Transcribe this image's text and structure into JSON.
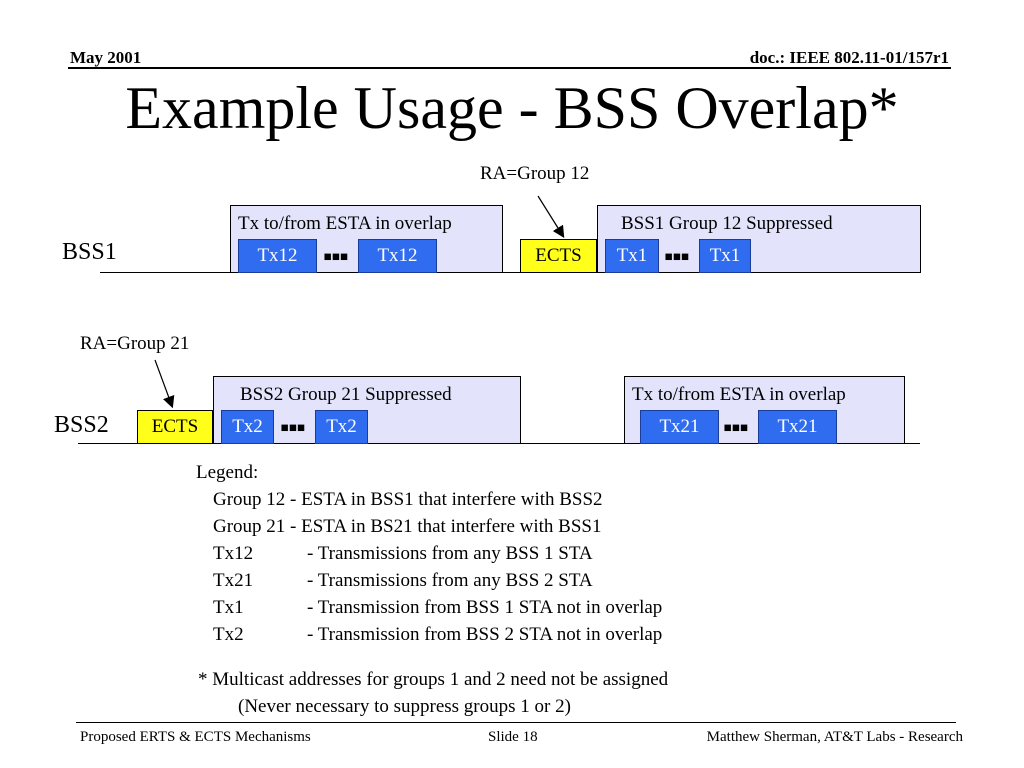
{
  "header": {
    "date": "May 2001",
    "doc": "doc.: IEEE 802.11-01/157r1"
  },
  "title": "Example Usage - BSS Overlap*",
  "bss1": {
    "label": "BSS1",
    "ra_label": "RA=Group 12",
    "left_frame": {
      "label": "Tx to/from ESTA in overlap",
      "blocks": [
        "Tx12",
        "Tx12"
      ]
    },
    "ects": "ECTS",
    "right_frame": {
      "label": "BSS1 Group 12 Suppressed",
      "blocks": [
        "Tx1",
        "Tx1"
      ]
    }
  },
  "bss2": {
    "label": "BSS2",
    "ra_label": "RA=Group 21",
    "ects": "ECTS",
    "left_frame": {
      "label": "BSS2 Group 21 Suppressed",
      "blocks": [
        "Tx2",
        "Tx2"
      ]
    },
    "right_frame": {
      "label": "Tx to/from ESTA in overlap",
      "blocks": [
        "Tx21",
        "Tx21"
      ]
    }
  },
  "ellipsis": "▪▪▪",
  "legend": {
    "heading": "Legend:",
    "group12": "Group 12 - ESTA in BSS1 that interfere with BSS2",
    "group21": "Group 21 - ESTA in BS21 that interfere with BSS1",
    "items": [
      {
        "key": "Tx12",
        "desc": "- Transmissions from any BSS 1 STA"
      },
      {
        "key": "Tx21",
        "desc": "- Transmissions from any BSS 2 STA"
      },
      {
        "key": "Tx1",
        "desc": "- Transmission from BSS 1 STA not in overlap"
      },
      {
        "key": "Tx2",
        "desc": "- Transmission from BSS 2 STA not in overlap"
      }
    ]
  },
  "footnote": {
    "line1": "*  Multicast addresses for groups 1 and 2 need not be assigned",
    "line2": "(Never necessary to suppress groups 1 or 2)"
  },
  "footer": {
    "left": "Proposed ERTS & ECTS Mechanisms",
    "center": "Slide 18",
    "right": "Matthew Sherman, AT&T Labs - Research"
  },
  "colors": {
    "frame_fill": "#e3e3fb",
    "tx_block": "#2f6cf0",
    "ects_block": "#ffff1a"
  }
}
